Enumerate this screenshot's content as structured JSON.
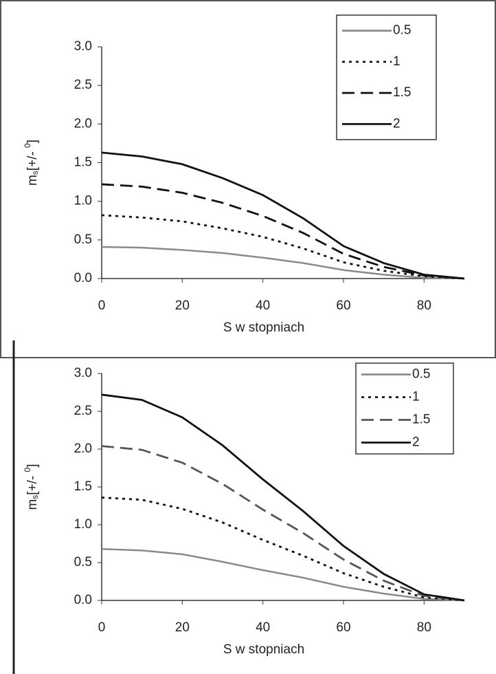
{
  "chart_data": [
    {
      "type": "line",
      "x_label": "S w stopniach",
      "y_label": {
        "main": "m",
        "sub": "s",
        "unit": "[+/- ",
        "sup": "0",
        "end": "]"
      },
      "x": [
        0,
        10,
        20,
        30,
        40,
        50,
        60,
        70,
        80,
        90
      ],
      "xlim": [
        0,
        90
      ],
      "xticks": [
        0,
        20,
        40,
        60,
        80
      ],
      "ylim": [
        0,
        3
      ],
      "yticks": [
        {
          "value": 0,
          "label": "0.0"
        },
        {
          "value": 0.5,
          "label": "0.5"
        },
        {
          "value": 1,
          "label": "1.0"
        },
        {
          "value": 1.5,
          "label": "1.5"
        },
        {
          "value": 2,
          "label": "2.0"
        },
        {
          "value": 2.5,
          "label": "2.5"
        },
        {
          "value": 3,
          "label": "3.0"
        }
      ],
      "legend": "upper right",
      "series": [
        {
          "name": "0.5",
          "color": "#8a8a8a",
          "style": "solid",
          "values": [
            0.41,
            0.4,
            0.37,
            0.33,
            0.27,
            0.2,
            0.11,
            0.05,
            0.01,
            0
          ]
        },
        {
          "name": "1",
          "color": "#111111",
          "style": "dotted",
          "values": [
            0.82,
            0.79,
            0.74,
            0.65,
            0.54,
            0.39,
            0.21,
            0.1,
            0.03,
            0
          ]
        },
        {
          "name": "1.5",
          "color": "#111111",
          "style": "dashed",
          "values": [
            1.22,
            1.19,
            1.11,
            0.98,
            0.81,
            0.59,
            0.32,
            0.15,
            0.04,
            0
          ]
        },
        {
          "name": "2",
          "color": "#111111",
          "style": "solid",
          "values": [
            1.63,
            1.58,
            1.48,
            1.3,
            1.08,
            0.78,
            0.42,
            0.2,
            0.05,
            0
          ]
        }
      ]
    },
    {
      "type": "line",
      "x_label": "S w stopniach",
      "y_label": {
        "main": "m",
        "sub": "s",
        "unit": "[+/- ",
        "sup": "0",
        "end": "]"
      },
      "x": [
        0,
        10,
        20,
        30,
        40,
        50,
        60,
        70,
        80,
        90
      ],
      "xlim": [
        0,
        90
      ],
      "xticks": [
        0,
        20,
        40,
        60,
        80
      ],
      "ylim": [
        0,
        3
      ],
      "yticks": [
        {
          "value": 0,
          "label": "0.0"
        },
        {
          "value": 0.5,
          "label": "0.5"
        },
        {
          "value": 1,
          "label": "1.0"
        },
        {
          "value": 1.5,
          "label": "1.5"
        },
        {
          "value": 2,
          "label": "2.0"
        },
        {
          "value": 2.5,
          "label": "2.5"
        },
        {
          "value": 3,
          "label": "3.0"
        }
      ],
      "legend": "upper right",
      "series": [
        {
          "name": "0.5",
          "color": "#8a8a8a",
          "style": "solid",
          "values": [
            0.68,
            0.66,
            0.61,
            0.51,
            0.4,
            0.3,
            0.18,
            0.09,
            0.02,
            0
          ]
        },
        {
          "name": "1",
          "color": "#111111",
          "style": "dotted",
          "values": [
            1.36,
            1.33,
            1.21,
            1.03,
            0.8,
            0.59,
            0.36,
            0.18,
            0.04,
            0
          ]
        },
        {
          "name": "1.5",
          "color": "#555555",
          "style": "dashed",
          "values": [
            2.04,
            1.99,
            1.82,
            1.54,
            1.2,
            0.89,
            0.54,
            0.26,
            0.06,
            0
          ]
        },
        {
          "name": "2",
          "color": "#111111",
          "style": "solid",
          "values": [
            2.72,
            2.65,
            2.42,
            2.05,
            1.6,
            1.18,
            0.72,
            0.35,
            0.08,
            0
          ]
        }
      ]
    }
  ]
}
